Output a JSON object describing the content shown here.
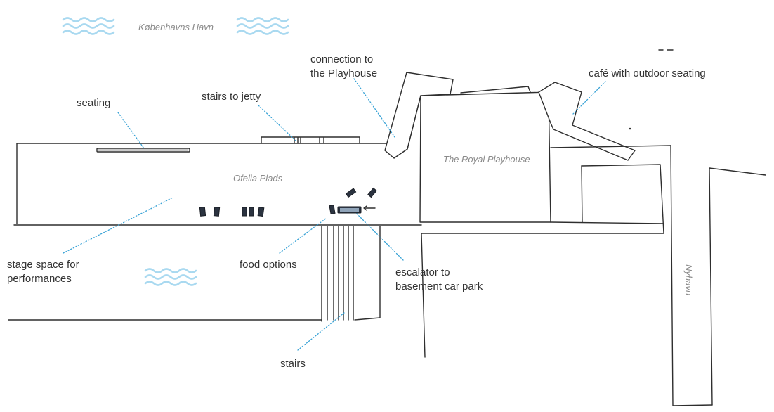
{
  "map": {
    "water_label": "Københavns Havn",
    "square_label": "Ofelia Plads",
    "building_label": "The Royal Playhouse",
    "street_label": "Nyhavn"
  },
  "annotations": {
    "seating": [
      "seating"
    ],
    "stairs_to_jetty": [
      "stairs to jetty"
    ],
    "connection_to_playhouse": [
      "connection to",
      "the Playhouse"
    ],
    "cafe": [
      "café with outdoor seating"
    ],
    "stage_space": [
      "stage space for",
      "performances"
    ],
    "food_options": [
      "food options"
    ],
    "escalator": [
      "escalator to",
      "basement car park"
    ],
    "stairs": [
      "stairs"
    ]
  },
  "colors": {
    "water": "#a9d9f0",
    "leader_lines": "#3aa3d6",
    "ink": "#2e2e2e",
    "label_text": "#333333",
    "place_text": "#8a8a8a"
  },
  "icons": {
    "water": "wave-icon",
    "direction": "arrow-left-icon"
  }
}
